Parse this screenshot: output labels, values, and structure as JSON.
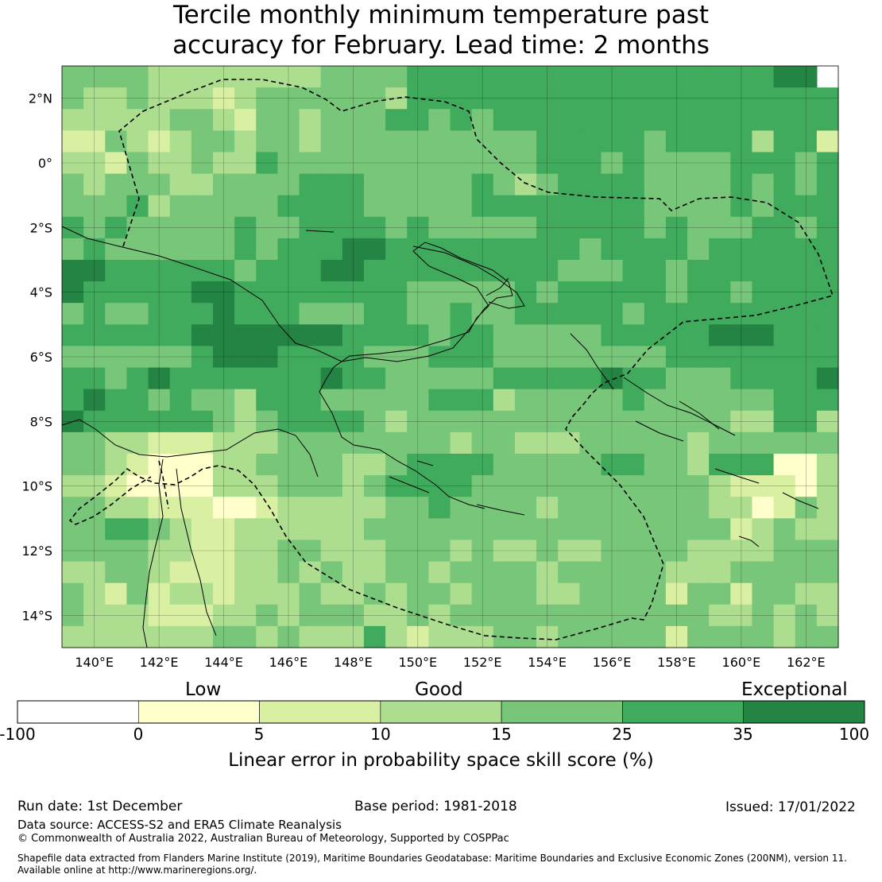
{
  "title": {
    "line1": "Tercile monthly minimum temperature past",
    "line2": "accuracy for February. Lead time: 2 months"
  },
  "map": {
    "lat_range": [
      -15,
      3
    ],
    "lon_range": [
      139,
      163
    ],
    "lat_ticks": [
      "2°N",
      "0°",
      "2°S",
      "4°S",
      "6°S",
      "8°S",
      "10°S",
      "12°S",
      "14°S"
    ],
    "lat_tick_values": [
      2,
      0,
      -2,
      -4,
      -6,
      -8,
      -10,
      -12,
      -14
    ],
    "lon_ticks": [
      "140°E",
      "142°E",
      "144°E",
      "146°E",
      "148°E",
      "150°E",
      "152°E",
      "154°E",
      "156°E",
      "158°E",
      "160°E",
      "162°E"
    ],
    "lon_tick_values": [
      140,
      142,
      144,
      146,
      148,
      150,
      152,
      154,
      156,
      158,
      160,
      162
    ],
    "grid_rows": [
      "44443333333344445555555555555555566",
      "433433323444444355555555555555555555",
      "333334432443444554545555555555555555",
      "224323443443444444444455555455553552",
      "332433433544444444444455545444455545",
      "434443344445554444454345555444454545",
      "444534444455554444455555555444454555",
      "545444445445555454444455555454445545",
      "454444445455566555555555455554555555",
      "665555554555665555555554445545555555",
      "655555665555555544444545555545545555",
      "454455565554445544544555554555555555",
      "555555666666655554554444455555666555",
      "444444566655554445554444444455555555",
      "554565555555655444445555565544455556",
      "565545443555444445553444445444444555",
      "655555543455554344444444444444433553",
      "443322233344444444344333444443444444",
      "443211133444433455554444455443555113",
      "332111133344434555544444444444322213",
      "443322211233333445444434444444331243",
      "445543223333334444444444444444423433",
      "444433223344333444343343344443333444",
      "334432223343433443444434444433344444",
      "432423323334334344344433444424424433",
      "433322233434443343444444444444334343",
      "333333344343335323334434444424444344"
    ],
    "color_scale": {
      "0": "#ffffff",
      "1": "#ffffcc",
      "2": "#d9f0a3",
      "3": "#addd8e",
      "4": "#78c679",
      "5": "#41ab5d",
      "6": "#238443"
    }
  },
  "colorbar": {
    "levels": [
      "-100",
      "0",
      "5",
      "10",
      "15",
      "25",
      "35",
      "100"
    ],
    "colors": [
      "#ffffff",
      "#ffffcc",
      "#d9f0a3",
      "#addd8e",
      "#78c679",
      "#41ab5d",
      "#238443"
    ],
    "category_low": "Low",
    "category_good": "Good",
    "category_exceptional": "Exceptional",
    "axis_label": "Linear error in probability space skill score (%)"
  },
  "footer": {
    "run_date": "Run date: 1st December",
    "base_period": "Base period: 1981-2018",
    "issued": "Issued: 17/01/2022",
    "data_source": "Data source: ACCESS-S2 and ERA5 Climate Reanalysis",
    "copyright": "© Commonwealth of Australia 2022, Australian Bureau of Meteorology, Supported by COSPPac",
    "shapefile_line1": "Shapefile data extracted from Flanders Marine Institute (2019), Maritime Boundaries Geodatabase: Maritime Boundaries and Exclusive Economic Zones (200NM), version 11.",
    "shapefile_line2": "Available online at http://www.marineregions.org/."
  }
}
